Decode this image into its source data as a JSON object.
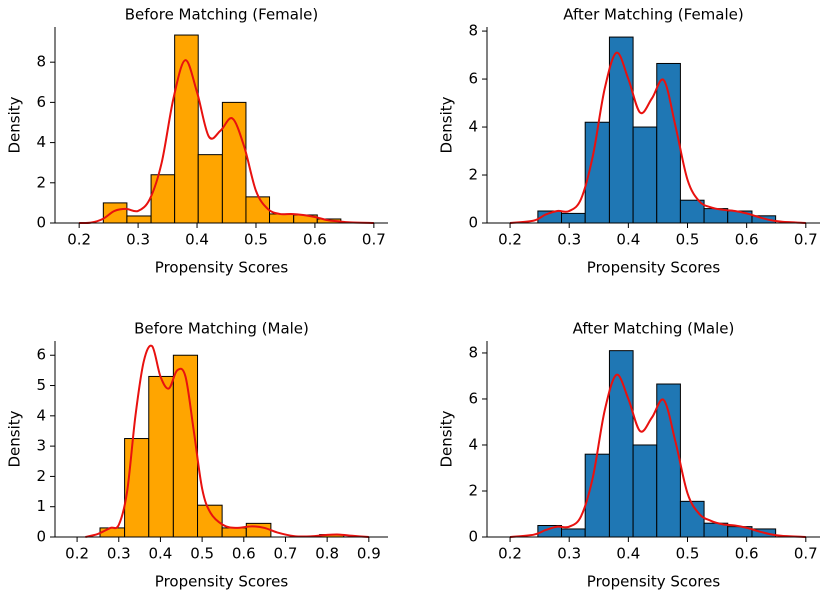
{
  "chart_data": [
    {
      "type": "histogram",
      "title": "Before Matching (Female)",
      "x_label": "Propensity Scores",
      "y_label": "Density",
      "bins": [
        0.241,
        0.281,
        0.322,
        0.362,
        0.402,
        0.443,
        0.483,
        0.523,
        0.564,
        0.604,
        0.644
      ],
      "counts": [
        1.0,
        0.35,
        2.4,
        9.35,
        3.4,
        6.0,
        1.3,
        0.45,
        0.4,
        0.2
      ],
      "color": "#ffa500",
      "kde": {
        "color": "#e8110f",
        "x": [
          0.2,
          0.22,
          0.24,
          0.26,
          0.28,
          0.3,
          0.32,
          0.34,
          0.36,
          0.38,
          0.4,
          0.42,
          0.44,
          0.46,
          0.48,
          0.5,
          0.52,
          0.54,
          0.56,
          0.58,
          0.6,
          0.62,
          0.64,
          0.66,
          0.7
        ],
        "values": [
          0,
          0.02,
          0.2,
          0.6,
          0.7,
          0.6,
          1.2,
          3.0,
          6.2,
          8.1,
          6.5,
          4.3,
          4.6,
          5.2,
          3.8,
          1.6,
          0.7,
          0.45,
          0.45,
          0.4,
          0.3,
          0.15,
          0.08,
          0.03,
          0
        ]
      },
      "xlim": [
        0.159,
        0.724
      ],
      "xticks": [
        0.2,
        0.3,
        0.4,
        0.5,
        0.6,
        0.7
      ],
      "ylim": [
        0,
        9.75
      ],
      "yticks": [
        0,
        2,
        4,
        6,
        8
      ]
    },
    {
      "type": "histogram",
      "title": "After Matching (Female)",
      "x_label": "Propensity Scores",
      "y_label": "Density",
      "bins": [
        0.247,
        0.287,
        0.327,
        0.368,
        0.408,
        0.448,
        0.488,
        0.528,
        0.568,
        0.609,
        0.649
      ],
      "counts": [
        0.5,
        0.4,
        4.2,
        7.75,
        4.0,
        6.65,
        0.95,
        0.6,
        0.5,
        0.3
      ],
      "color": "#1f77b4",
      "kde": {
        "color": "#e8110f",
        "x": [
          0.2,
          0.24,
          0.26,
          0.28,
          0.3,
          0.32,
          0.34,
          0.36,
          0.38,
          0.4,
          0.42,
          0.44,
          0.46,
          0.48,
          0.5,
          0.52,
          0.54,
          0.56,
          0.58,
          0.6,
          0.62,
          0.64,
          0.66,
          0.7
        ],
        "values": [
          0,
          0.1,
          0.35,
          0.5,
          0.5,
          1.0,
          2.8,
          5.6,
          7.1,
          6.0,
          4.6,
          5.2,
          5.95,
          4.0,
          1.8,
          0.9,
          0.65,
          0.55,
          0.5,
          0.4,
          0.25,
          0.12,
          0.05,
          0
        ]
      },
      "xlim": [
        0.161,
        0.724
      ],
      "xticks": [
        0.2,
        0.3,
        0.4,
        0.5,
        0.6,
        0.7
      ],
      "ylim": [
        0,
        8.17
      ],
      "yticks": [
        0,
        2,
        4,
        6,
        8
      ]
    },
    {
      "type": "histogram",
      "title": "Before Matching (Male)",
      "x_label": "Propensity Scores",
      "y_label": "Density",
      "bins": [
        0.255,
        0.314,
        0.372,
        0.431,
        0.489,
        0.548,
        0.606,
        0.665,
        0.723,
        0.782,
        0.84
      ],
      "counts": [
        0.3,
        3.25,
        5.3,
        6.0,
        1.05,
        0.3,
        0.45,
        0,
        0,
        0.08
      ],
      "color": "#ffa500",
      "kde": {
        "color": "#e8110f",
        "x": [
          0.22,
          0.25,
          0.28,
          0.3,
          0.32,
          0.34,
          0.36,
          0.38,
          0.4,
          0.42,
          0.44,
          0.46,
          0.48,
          0.5,
          0.52,
          0.55,
          0.58,
          0.62,
          0.65,
          0.68,
          0.72,
          0.76,
          0.8,
          0.83,
          0.86,
          0.9
        ],
        "values": [
          0,
          0.1,
          0.3,
          0.4,
          1.5,
          4.0,
          5.8,
          6.3,
          5.3,
          4.9,
          5.5,
          5.3,
          3.5,
          1.6,
          0.8,
          0.4,
          0.3,
          0.35,
          0.3,
          0.15,
          0.03,
          0.02,
          0.07,
          0.08,
          0.04,
          0
        ]
      },
      "xlim": [
        0.147,
        0.946
      ],
      "xticks": [
        0.2,
        0.3,
        0.4,
        0.5,
        0.6,
        0.7,
        0.8,
        0.9
      ],
      "ylim": [
        0,
        6.47
      ],
      "yticks": [
        0,
        1,
        2,
        3,
        4,
        5,
        6
      ]
    },
    {
      "type": "histogram",
      "title": "After Matching (Male)",
      "x_label": "Propensity Scores",
      "y_label": "Density",
      "bins": [
        0.247,
        0.287,
        0.327,
        0.368,
        0.408,
        0.448,
        0.488,
        0.528,
        0.568,
        0.609,
        0.649
      ],
      "counts": [
        0.5,
        0.35,
        3.6,
        8.1,
        4.0,
        6.65,
        1.55,
        0.6,
        0.45,
        0.35
      ],
      "color": "#1f77b4",
      "kde": {
        "color": "#e8110f",
        "x": [
          0.2,
          0.24,
          0.26,
          0.28,
          0.3,
          0.32,
          0.34,
          0.36,
          0.38,
          0.4,
          0.42,
          0.44,
          0.46,
          0.48,
          0.5,
          0.52,
          0.54,
          0.56,
          0.58,
          0.6,
          0.62,
          0.64,
          0.66,
          0.7
        ],
        "values": [
          0,
          0.1,
          0.3,
          0.45,
          0.45,
          0.9,
          2.6,
          5.5,
          7.05,
          6.0,
          4.6,
          5.2,
          5.95,
          4.1,
          1.9,
          1.0,
          0.7,
          0.55,
          0.5,
          0.4,
          0.25,
          0.12,
          0.05,
          0
        ]
      },
      "xlim": [
        0.161,
        0.724
      ],
      "xticks": [
        0.2,
        0.3,
        0.4,
        0.5,
        0.6,
        0.7
      ],
      "ylim": [
        0,
        8.52
      ],
      "yticks": [
        0,
        2,
        4,
        6,
        8
      ]
    }
  ]
}
